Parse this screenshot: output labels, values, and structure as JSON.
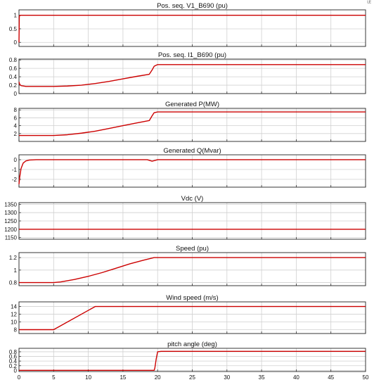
{
  "corner_label": "ᴸᴱ",
  "line_color": "#cc0000",
  "chart_data": [
    {
      "type": "line",
      "title": "Pos. seq. V1_B690 (pu)",
      "xlim": [
        0,
        50
      ],
      "ylim": [
        -0.15,
        1.2
      ],
      "yticks": [
        0,
        0.5,
        1
      ],
      "ytick_labels": [
        "0",
        "0.5",
        "1"
      ],
      "grid": true,
      "series": [
        {
          "x": [
            0,
            0.05,
            0.2,
            0.5,
            5,
            10,
            15,
            19,
            20,
            25,
            30,
            40,
            50
          ],
          "y": [
            0,
            0.97,
            1.0,
            1.0,
            1.0,
            1.0,
            1.0,
            1.0,
            1.0,
            1.0,
            1.0,
            1.0,
            1.0
          ]
        }
      ]
    },
    {
      "type": "line",
      "title": "Pos. seq. I1_B690 (pu)",
      "xlim": [
        0,
        50
      ],
      "ylim": [
        0,
        0.82
      ],
      "yticks": [
        0,
        0.2,
        0.4,
        0.6,
        0.8
      ],
      "ytick_labels": [
        "0",
        "0.2",
        "0.4",
        "0.6",
        "0.8"
      ],
      "grid": true,
      "series": [
        {
          "x": [
            0,
            0.1,
            0.3,
            1,
            5,
            7,
            9,
            11,
            13,
            15,
            17,
            18.8,
            19.2,
            19.5,
            20,
            25,
            30,
            40,
            50
          ],
          "y": [
            0.28,
            0.22,
            0.19,
            0.17,
            0.17,
            0.18,
            0.2,
            0.24,
            0.29,
            0.35,
            0.41,
            0.46,
            0.56,
            0.65,
            0.69,
            0.69,
            0.69,
            0.69,
            0.69
          ]
        }
      ]
    },
    {
      "type": "line",
      "title": "Generated P(MW)",
      "xlim": [
        0,
        50
      ],
      "ylim": [
        0,
        8.4
      ],
      "yticks": [
        2,
        4,
        6,
        8
      ],
      "ytick_labels": [
        "2",
        "4",
        "6",
        "8"
      ],
      "grid": true,
      "series": [
        {
          "x": [
            0,
            0.2,
            5,
            7,
            9,
            11,
            13,
            15,
            17,
            18.8,
            19.2,
            19.5,
            20,
            25,
            30,
            40,
            50
          ],
          "y": [
            1.5,
            1.5,
            1.5,
            1.7,
            2.1,
            2.6,
            3.3,
            4.0,
            4.7,
            5.3,
            6.5,
            7.3,
            7.5,
            7.5,
            7.5,
            7.5,
            7.5
          ]
        }
      ]
    },
    {
      "type": "line",
      "title": "Generated Q(Mvar)",
      "xlim": [
        0,
        50
      ],
      "ylim": [
        -2.8,
        0.5
      ],
      "yticks": [
        -2,
        -1,
        0
      ],
      "ytick_labels": [
        "-2",
        "-1",
        "0"
      ],
      "grid": true,
      "series": [
        {
          "x": [
            0,
            0.1,
            0.3,
            0.6,
            1.0,
            1.5,
            2.5,
            5,
            10,
            18.5,
            19.2,
            19.6,
            20,
            25,
            30,
            40,
            50
          ],
          "y": [
            -2.5,
            -1.8,
            -0.9,
            -0.35,
            -0.12,
            -0.03,
            0,
            0,
            0,
            0,
            -0.15,
            -0.08,
            0,
            0,
            0,
            0,
            0
          ]
        }
      ]
    },
    {
      "type": "line",
      "title": "Vdc (V)",
      "xlim": [
        0,
        50
      ],
      "ylim": [
        1140,
        1360
      ],
      "yticks": [
        1150,
        1200,
        1250,
        1300,
        1350
      ],
      "ytick_labels": [
        "1150",
        "1200",
        "1250",
        "1300",
        "1350"
      ],
      "grid": true,
      "series": [
        {
          "x": [
            0,
            50
          ],
          "y": [
            1200,
            1200
          ]
        }
      ]
    },
    {
      "type": "line",
      "title": "Speed (pu)",
      "xlim": [
        0,
        50
      ],
      "ylim": [
        0.75,
        1.28
      ],
      "yticks": [
        0.8,
        1,
        1.2
      ],
      "ytick_labels": [
        "0.8",
        "1",
        "1.2"
      ],
      "grid": true,
      "series": [
        {
          "x": [
            0,
            5,
            6,
            8,
            10,
            12,
            14,
            16,
            18,
            19.5,
            20,
            25,
            30,
            40,
            50
          ],
          "y": [
            0.8,
            0.8,
            0.81,
            0.85,
            0.9,
            0.96,
            1.03,
            1.1,
            1.16,
            1.2,
            1.2,
            1.2,
            1.2,
            1.2,
            1.2
          ]
        }
      ]
    },
    {
      "type": "line",
      "title": "Wind speed (m/s)",
      "xlim": [
        0,
        50
      ],
      "ylim": [
        7,
        15.2
      ],
      "yticks": [
        8,
        10,
        12,
        14
      ],
      "ytick_labels": [
        "8",
        "10",
        "12",
        "14"
      ],
      "grid": true,
      "series": [
        {
          "x": [
            0,
            5,
            11,
            50
          ],
          "y": [
            8,
            8,
            14,
            14
          ]
        }
      ]
    },
    {
      "type": "line",
      "title": "pitch angle (deg)",
      "xlim": [
        0,
        50
      ],
      "ylim": [
        -0.05,
        0.95
      ],
      "yticks": [
        0,
        0.2,
        0.4,
        0.6,
        0.8
      ],
      "ytick_labels": [
        "0",
        "0.2",
        "0.4",
        "0.6",
        "0.8"
      ],
      "xticks": [
        0,
        5,
        10,
        15,
        20,
        25,
        30,
        35,
        40,
        45,
        50
      ],
      "xtick_labels": [
        "0",
        "5",
        "10",
        "15",
        "20",
        "25",
        "30",
        "35",
        "40",
        "45",
        "50"
      ],
      "grid": true,
      "series": [
        {
          "x": [
            0,
            19.5,
            19.6,
            19.8,
            20,
            20.5,
            50
          ],
          "y": [
            0,
            0,
            0.1,
            0.5,
            0.8,
            0.82,
            0.82
          ]
        }
      ]
    }
  ]
}
